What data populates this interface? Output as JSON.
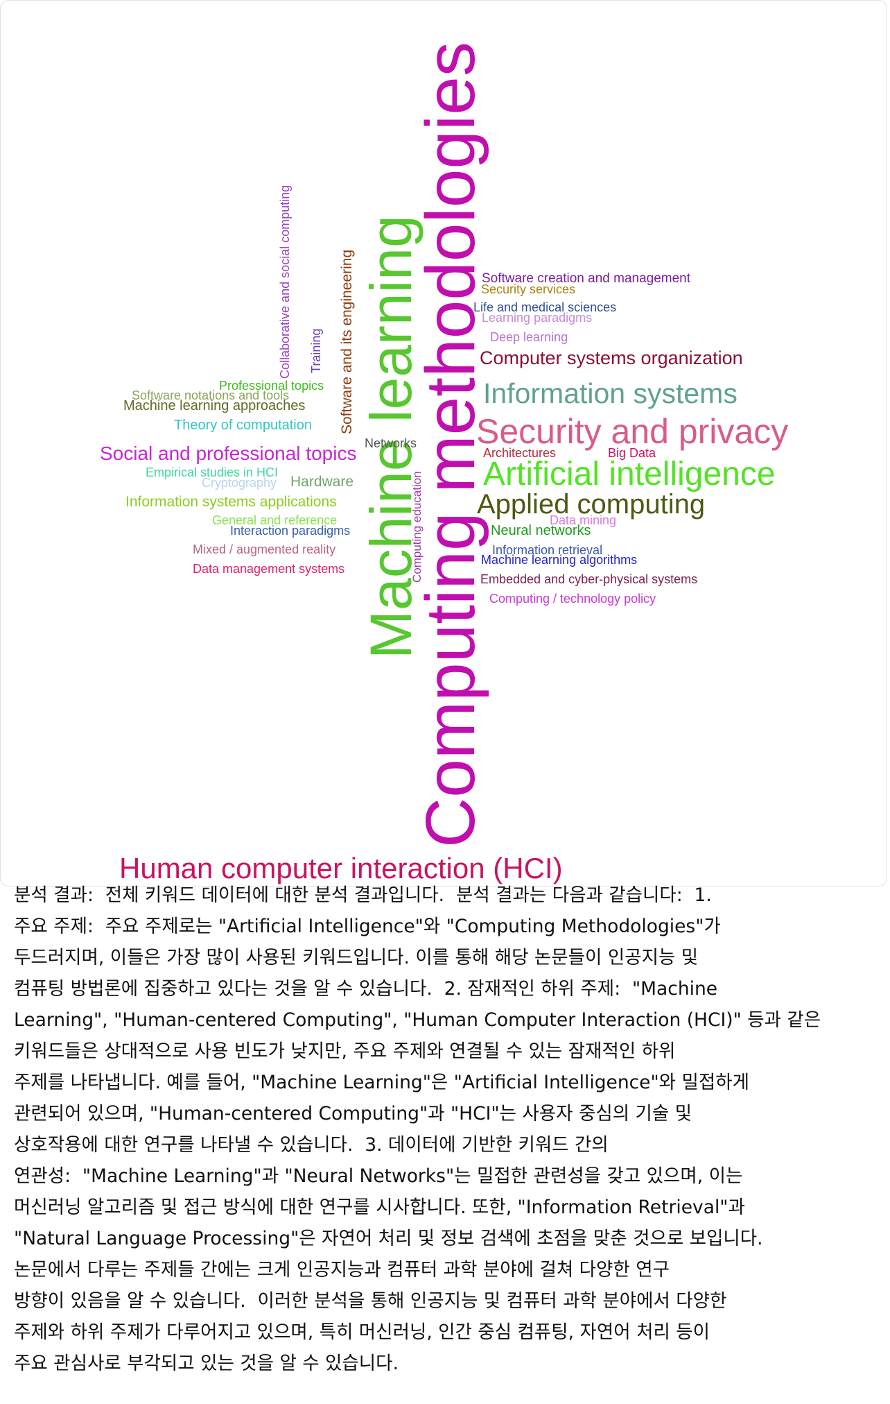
{
  "wordcloud": {
    "words": [
      {
        "id": "computing-methodologies",
        "text": "Computing methodologies",
        "color": "#c10eae"
      },
      {
        "id": "machine-learning",
        "text": "Machine learning",
        "color": "#57c72f"
      },
      {
        "id": "hci",
        "text": "Human computer interaction (HCI)",
        "color": "#c8145f"
      },
      {
        "id": "security-privacy",
        "text": "Security and privacy",
        "color": "#d85c86"
      },
      {
        "id": "artificial-intelligence",
        "text": "Artificial intelligence",
        "color": "#52e324"
      },
      {
        "id": "information-systems",
        "text": "Information systems",
        "color": "#5fa38a"
      },
      {
        "id": "applied-computing",
        "text": "Applied computing",
        "color": "#4b5a12"
      },
      {
        "id": "social-professional-topics",
        "text": "Social and professional topics",
        "color": "#c627cf"
      },
      {
        "id": "computer-systems-organization",
        "text": "Computer systems organization",
        "color": "#8b1030"
      },
      {
        "id": "software-engineering",
        "text": "Software and its engineering",
        "color": "#8c3a0c"
      },
      {
        "id": "collaborative-social-computing",
        "text": "Collaborative and social computing",
        "color": "#9a3fc4"
      },
      {
        "id": "training",
        "text": "Training",
        "color": "#6b3fb0"
      },
      {
        "id": "computing-education",
        "text": "Computing education",
        "color": "#9b3aa3"
      },
      {
        "id": "software-creation-management",
        "text": "Software creation and management",
        "color": "#7a1e9c"
      },
      {
        "id": "security-services",
        "text": "Security services",
        "color": "#a8850e"
      },
      {
        "id": "life-medical-sciences",
        "text": "Life and medical sciences",
        "color": "#2d4f93"
      },
      {
        "id": "learning-paradigms",
        "text": "Learning paradigms",
        "color": "#c58ad8"
      },
      {
        "id": "deep-learning",
        "text": "Deep learning",
        "color": "#b572cf"
      },
      {
        "id": "professional-topics",
        "text": "Professional topics",
        "color": "#3dbb1b"
      },
      {
        "id": "software-notations-tools",
        "text": "Software notations and tools",
        "color": "#8ca35a"
      },
      {
        "id": "ml-approaches",
        "text": "Machine learning approaches",
        "color": "#5b6d22"
      },
      {
        "id": "theory-of-computation",
        "text": "Theory of computation",
        "color": "#31c6c2"
      },
      {
        "id": "networks",
        "text": "Networks",
        "color": "#555555"
      },
      {
        "id": "architectures",
        "text": "Architectures",
        "color": "#b02a3c"
      },
      {
        "id": "big-data",
        "text": "Big Data",
        "color": "#c8145f"
      },
      {
        "id": "empirical-studies-hci",
        "text": "Empirical studies in HCI",
        "color": "#3ed79a"
      },
      {
        "id": "cryptography",
        "text": "Cryptography",
        "color": "#b8d3f2"
      },
      {
        "id": "hardware",
        "text": "Hardware",
        "color": "#6fa36a"
      },
      {
        "id": "info-systems-applications",
        "text": "Information systems applications",
        "color": "#8ccd1f"
      },
      {
        "id": "general-reference",
        "text": "General and reference",
        "color": "#89e04c"
      },
      {
        "id": "interaction-paradigms",
        "text": "Interaction paradigms",
        "color": "#3760a9"
      },
      {
        "id": "data-mining",
        "text": "Data mining",
        "color": "#d97ad9"
      },
      {
        "id": "neural-networks",
        "text": "Neural networks",
        "color": "#1f9a1f"
      },
      {
        "id": "mixed-augmented-reality",
        "text": "Mixed / augmented reality",
        "color": "#b4657a"
      },
      {
        "id": "information-retrieval",
        "text": "Information retrieval",
        "color": "#3a57a8"
      },
      {
        "id": "ml-algorithms",
        "text": "Machine learning algorithms",
        "color": "#2323c8"
      },
      {
        "id": "data-management-systems",
        "text": "Data management systems",
        "color": "#e01e6c"
      },
      {
        "id": "embedded-cyber-physical",
        "text": "Embedded and cyber-physical systems",
        "color": "#7a1f4a"
      },
      {
        "id": "computing-technology-policy",
        "text": "Computing / technology policy",
        "color": "#c83ad2"
      }
    ]
  },
  "analysis_text": "분석 결과:  전체 키워드 데이터에 대한 분석 결과입니다.  분석 결과는 다음과 같습니다:  1.\n주요 주제:  주요 주제로는 \"Artificial Intelligence\"와 \"Computing Methodologies\"가\n두드러지며, 이들은 가장 많이 사용된 키워드입니다. 이를 통해 해당 논문들이 인공지능 및\n컴퓨팅 방법론에 집중하고 있다는 것을 알 수 있습니다.  2. 잠재적인 하위 주제:  \"Machine\nLearning\", \"Human-centered Computing\", \"Human Computer Interaction (HCI)\" 등과 같은\n키워드들은 상대적으로 사용 빈도가 낮지만, 주요 주제와 연결될 수 있는 잠재적인 하위\n주제를 나타냅니다. 예를 들어, \"Machine Learning\"은 \"Artificial Intelligence\"와 밀접하게\n관련되어 있으며, \"Human-centered Computing\"과 \"HCI\"는 사용자 중심의 기술 및\n상호작용에 대한 연구를 나타낼 수 있습니다.  3. 데이터에 기반한 키워드 간의\n연관성:  \"Machine Learning\"과 \"Neural Networks\"는 밀접한 관련성을 갖고 있으며, 이는\n머신러닝 알고리즘 및 접근 방식에 대한 연구를 시사합니다. 또한, \"Information Retrieval\"과\n\"Natural Language Processing\"은 자연어 처리 및 정보 검색에 초점을 맞춘 것으로 보입니다.\n논문에서 다루는 주제들 간에는 크게 인공지능과 컴퓨터 과학 분야에 걸쳐 다양한 연구\n방향이 있음을 알 수 있습니다.  이러한 분석을 통해 인공지능 및 컴퓨터 과학 분야에서 다양한\n주제와 하위 주제가 다루어지고 있으며, 특히 머신러닝, 인간 중심 컴퓨팅, 자연어 처리 등이\n주요 관심사로 부각되고 있는 것을 알 수 있습니다."
}
